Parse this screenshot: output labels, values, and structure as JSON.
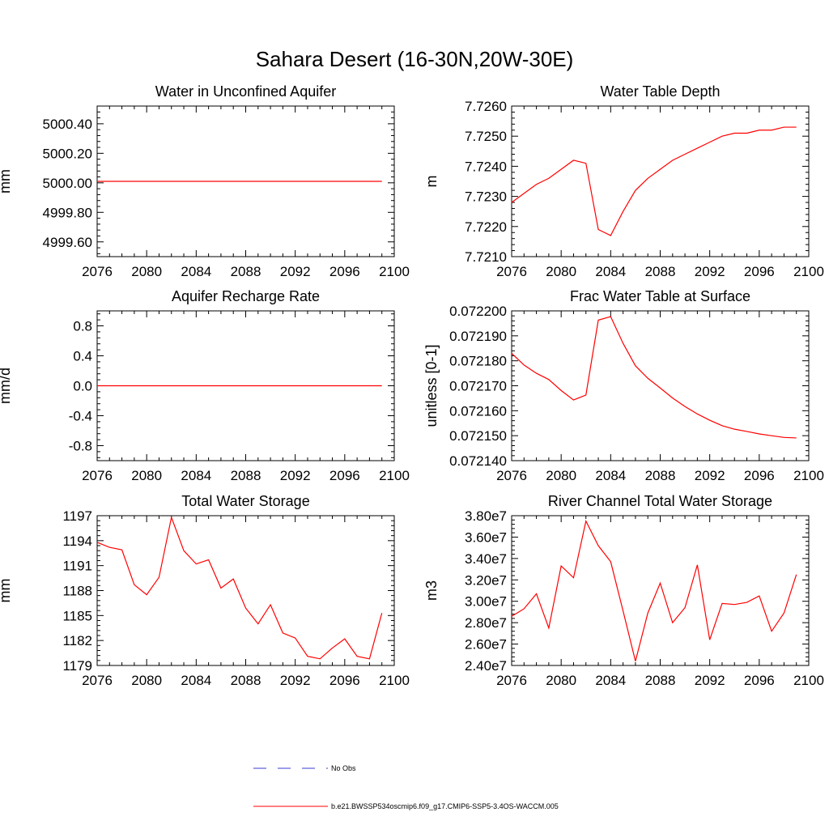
{
  "title": "Sahara Desert (16-30N,20W-30E)",
  "legend": {
    "obs_label": "No Obs",
    "model_label": "b.e21.BWSSP534oscmip6.f09_g17.CMIP6-SSP5-3.4OS-WACCM.005",
    "obs_color": "#3b3bd6",
    "model_color": "#ff0000"
  },
  "chart_data": [
    {
      "type": "line",
      "title": "Water in Unconfined Aquifer",
      "ylabel": "mm",
      "xlim": [
        2076,
        2100
      ],
      "ylim": [
        4999.5,
        5000.52
      ],
      "xticks": [
        2076,
        2080,
        2084,
        2088,
        2092,
        2096,
        2100
      ],
      "xtick_labels": [
        "2076",
        "2080",
        "2084",
        "2088",
        "2092",
        "2096",
        "2100"
      ],
      "yticks": [
        4999.6,
        4999.8,
        5000.0,
        5000.2,
        5000.4
      ],
      "ytick_labels": [
        "4999.60",
        "4999.80",
        "5000.00",
        "5000.20",
        "5000.40"
      ],
      "series": [
        {
          "color": "#ff0000",
          "x": [
            2076,
            2077,
            2078,
            2079,
            2080,
            2081,
            2082,
            2083,
            2084,
            2085,
            2086,
            2087,
            2088,
            2089,
            2090,
            2091,
            2092,
            2093,
            2094,
            2095,
            2096,
            2097,
            2098,
            2099
          ],
          "y": [
            5000.01,
            5000.01,
            5000.01,
            5000.01,
            5000.01,
            5000.01,
            5000.01,
            5000.01,
            5000.01,
            5000.01,
            5000.01,
            5000.01,
            5000.01,
            5000.01,
            5000.01,
            5000.01,
            5000.01,
            5000.01,
            5000.01,
            5000.01,
            5000.01,
            5000.01,
            5000.01,
            5000.01
          ]
        }
      ]
    },
    {
      "type": "line",
      "title": "Water Table Depth",
      "ylabel": "m",
      "xlim": [
        2076,
        2100
      ],
      "ylim": [
        7.721,
        7.726
      ],
      "xticks": [
        2076,
        2080,
        2084,
        2088,
        2092,
        2096,
        2100
      ],
      "xtick_labels": [
        "2076",
        "2080",
        "2084",
        "2088",
        "2092",
        "2096",
        "2100"
      ],
      "yticks": [
        7.721,
        7.722,
        7.723,
        7.724,
        7.725,
        7.726
      ],
      "ytick_labels": [
        "7.7210",
        "7.7220",
        "7.7230",
        "7.7240",
        "7.7250",
        "7.7260"
      ],
      "series": [
        {
          "color": "#ff0000",
          "x": [
            2076,
            2077,
            2078,
            2079,
            2080,
            2081,
            2082,
            2083,
            2084,
            2085,
            2086,
            2087,
            2088,
            2089,
            2090,
            2091,
            2092,
            2093,
            2094,
            2095,
            2096,
            2097,
            2098,
            2099
          ],
          "y": [
            7.7228,
            7.7231,
            7.7234,
            7.7236,
            7.7239,
            7.7242,
            7.7241,
            7.7219,
            7.7217,
            7.7225,
            7.7232,
            7.7236,
            7.7239,
            7.7242,
            7.7244,
            7.7246,
            7.7248,
            7.725,
            7.7251,
            7.7251,
            7.7252,
            7.7252,
            7.7253,
            7.7253
          ]
        }
      ]
    },
    {
      "type": "line",
      "title": "Aquifer Recharge Rate",
      "ylabel": "mm/d",
      "xlim": [
        2076,
        2100
      ],
      "ylim": [
        -1.0,
        1.0
      ],
      "xticks": [
        2076,
        2080,
        2084,
        2088,
        2092,
        2096,
        2100
      ],
      "xtick_labels": [
        "2076",
        "2080",
        "2084",
        "2088",
        "2092",
        "2096",
        "2100"
      ],
      "yticks": [
        -0.8,
        -0.4,
        0.0,
        0.4,
        0.8
      ],
      "ytick_labels": [
        "-0.8",
        "-0.4",
        "0.0",
        "0.4",
        "0.8"
      ],
      "series": [
        {
          "color": "#ff0000",
          "x": [
            2076,
            2077,
            2078,
            2079,
            2080,
            2081,
            2082,
            2083,
            2084,
            2085,
            2086,
            2087,
            2088,
            2089,
            2090,
            2091,
            2092,
            2093,
            2094,
            2095,
            2096,
            2097,
            2098,
            2099
          ],
          "y": [
            0,
            0,
            0,
            0,
            0,
            0,
            0,
            0,
            0,
            0,
            0,
            0,
            0,
            0,
            0,
            0,
            0,
            0,
            0,
            0,
            0,
            0,
            0,
            0
          ]
        }
      ]
    },
    {
      "type": "line",
      "title": "Frac Water Table at Surface",
      "ylabel": "unitless [0-1]",
      "xlim": [
        2076,
        2100
      ],
      "ylim": [
        0.07214,
        0.0722
      ],
      "xticks": [
        2076,
        2080,
        2084,
        2088,
        2092,
        2096,
        2100
      ],
      "xtick_labels": [
        "2076",
        "2080",
        "2084",
        "2088",
        "2092",
        "2096",
        "2100"
      ],
      "yticks": [
        0.07214,
        0.07215,
        0.07216,
        0.07217,
        0.07218,
        0.07219,
        0.0722
      ],
      "ytick_labels": [
        "0.072140",
        "0.072150",
        "0.072160",
        "0.072170",
        "0.072180",
        "0.072190",
        "0.072200"
      ],
      "series": [
        {
          "color": "#ff0000",
          "x": [
            2076,
            2077,
            2078,
            2079,
            2080,
            2081,
            2082,
            2083,
            2084,
            2085,
            2086,
            2087,
            2088,
            2089,
            2090,
            2091,
            2092,
            2093,
            2094,
            2095,
            2096,
            2097,
            2098,
            2099
          ],
          "y": [
            0.072183,
            0.0721783,
            0.072175,
            0.0721725,
            0.0721681,
            0.0721643,
            0.0721663,
            0.0721963,
            0.0721977,
            0.072187,
            0.072178,
            0.072173,
            0.0721691,
            0.0721651,
            0.0721617,
            0.0721587,
            0.0721562,
            0.072154,
            0.0721526,
            0.0721517,
            0.0721507,
            0.07215,
            0.0721493,
            0.0721491
          ]
        }
      ]
    },
    {
      "type": "line",
      "title": "Total Water Storage",
      "ylabel": "mm",
      "xlim": [
        2076,
        2100
      ],
      "ylim": [
        1179,
        1197
      ],
      "xticks": [
        2076,
        2080,
        2084,
        2088,
        2092,
        2096,
        2100
      ],
      "xtick_labels": [
        "2076",
        "2080",
        "2084",
        "2088",
        "2092",
        "2096",
        "2100"
      ],
      "yticks": [
        1179,
        1182,
        1185,
        1188,
        1191,
        1194,
        1197
      ],
      "ytick_labels": [
        "1179",
        "1182",
        "1185",
        "1188",
        "1191",
        "1194",
        "1197"
      ],
      "series": [
        {
          "color": "#ff0000",
          "x": [
            2076,
            2077,
            2078,
            2079,
            2080,
            2081,
            2082,
            2083,
            2084,
            2085,
            2086,
            2087,
            2088,
            2089,
            2090,
            2091,
            2092,
            2093,
            2094,
            2095,
            2096,
            2097,
            2098,
            2099
          ],
          "y": [
            1193.8,
            1193.2,
            1192.9,
            1188.7,
            1187.5,
            1189.6,
            1196.8,
            1192.8,
            1191.2,
            1191.7,
            1188.3,
            1189.4,
            1185.9,
            1184.0,
            1186.3,
            1182.9,
            1182.3,
            1180.1,
            1179.8,
            1181.1,
            1182.2,
            1180.1,
            1179.8,
            1185.3
          ]
        }
      ]
    },
    {
      "type": "line",
      "title": "River Channel Total Water Storage",
      "ylabel": "m3",
      "xlim": [
        2076,
        2100
      ],
      "ylim": [
        24000000,
        38000000
      ],
      "xticks": [
        2076,
        2080,
        2084,
        2088,
        2092,
        2096,
        2100
      ],
      "xtick_labels": [
        "2076",
        "2080",
        "2084",
        "2088",
        "2092",
        "2096",
        "2100"
      ],
      "yticks": [
        24000000,
        26000000,
        28000000,
        30000000,
        32000000,
        34000000,
        36000000,
        38000000
      ],
      "ytick_labels": [
        "2.40e7",
        "2.60e7",
        "2.80e7",
        "3.00e7",
        "3.20e7",
        "3.40e7",
        "3.60e7",
        "3.80e7"
      ],
      "series": [
        {
          "color": "#ff0000",
          "x": [
            2076,
            2077,
            2078,
            2079,
            2080,
            2081,
            2082,
            2083,
            2084,
            2085,
            2086,
            2087,
            2088,
            2089,
            2090,
            2091,
            2092,
            2093,
            2094,
            2095,
            2096,
            2097,
            2098,
            2099
          ],
          "y": [
            28600000,
            29300000,
            30700000,
            27500000,
            33300000,
            32200000,
            37500000,
            35200000,
            33700000,
            29100000,
            24400000,
            28900000,
            31700000,
            28000000,
            29400000,
            33400000,
            26400000,
            29800000,
            29700000,
            29900000,
            30500000,
            27200000,
            28900000,
            32500000
          ]
        }
      ]
    }
  ]
}
